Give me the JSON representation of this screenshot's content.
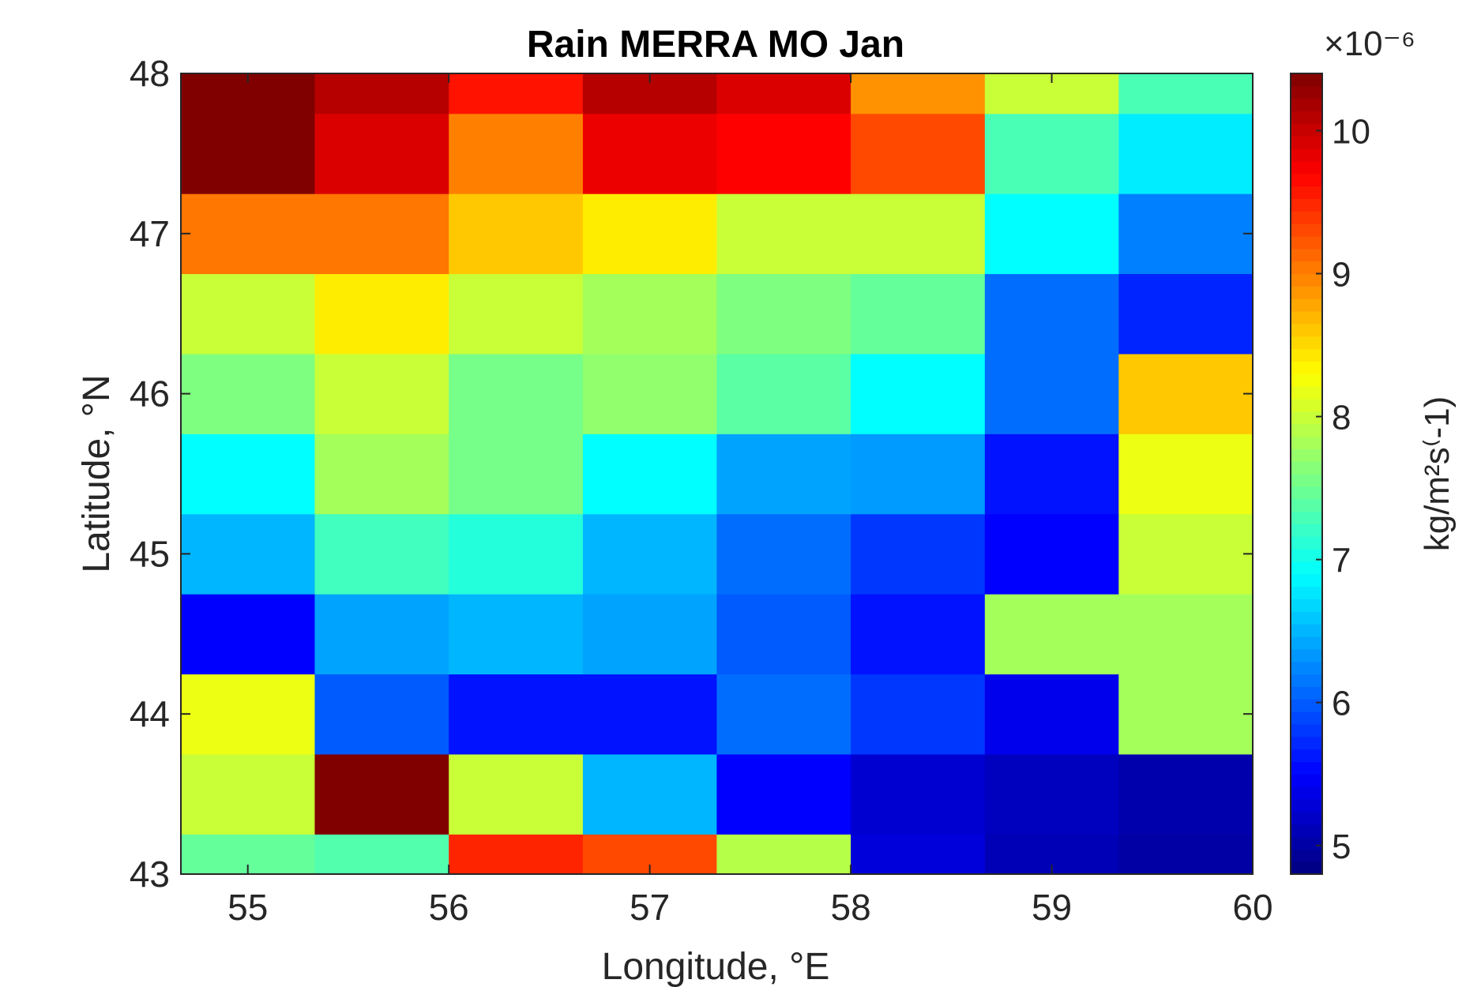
{
  "chart_data": {
    "type": "heatmap",
    "title": "Rain MERRA MO Jan",
    "xlabel": "Longitude, °E",
    "ylabel": "Latitude, °N",
    "colorbar_label": "kg/m²s⁽-1)",
    "colorbar_exponent": "×10⁻⁶",
    "colormap": "jet",
    "x_centers": [
      55.0,
      55.667,
      56.333,
      57.0,
      57.667,
      58.333,
      59.0,
      59.667
    ],
    "x_edges": [
      54.667,
      55.333,
      56.0,
      56.667,
      57.333,
      58.0,
      58.667,
      59.333,
      60.0
    ],
    "y_centers": [
      43.0,
      43.5,
      44.0,
      44.5,
      45.0,
      45.5,
      46.0,
      46.5,
      47.0,
      47.5,
      48.0
    ],
    "y_edges": [
      42.75,
      43.25,
      43.75,
      44.25,
      44.75,
      45.25,
      45.75,
      46.25,
      46.75,
      47.25,
      47.75,
      48.25
    ],
    "xlim": [
      54.667,
      60.0
    ],
    "ylim": [
      43.0,
      48.0
    ],
    "xticks": [
      55,
      56,
      57,
      58,
      59,
      60
    ],
    "yticks": [
      43,
      44,
      45,
      46,
      47,
      48
    ],
    "clim": [
      4.8,
      10.4
    ],
    "colorbar_ticks": [
      5,
      6,
      7,
      8,
      9,
      10
    ],
    "values": [
      [
        7.45,
        7.35,
        9.5,
        9.3,
        7.9,
        5.3,
        5.1,
        5.0
      ],
      [
        8.0,
        10.4,
        8.0,
        6.5,
        5.5,
        5.25,
        5.15,
        5.05
      ],
      [
        8.2,
        6.0,
        5.6,
        5.6,
        6.1,
        5.8,
        5.4,
        7.8
      ],
      [
        5.5,
        6.4,
        6.5,
        6.4,
        6.0,
        5.6,
        7.8,
        7.8
      ],
      [
        6.5,
        7.25,
        7.1,
        6.5,
        6.1,
        5.8,
        5.5,
        8.0
      ],
      [
        6.9,
        7.8,
        7.55,
        6.9,
        6.4,
        6.35,
        5.6,
        8.2
      ],
      [
        7.6,
        8.0,
        7.55,
        7.7,
        7.4,
        6.9,
        6.1,
        8.6
      ],
      [
        8.0,
        8.4,
        8.0,
        7.8,
        7.6,
        7.45,
        6.1,
        5.7
      ],
      [
        9.05,
        9.05,
        8.6,
        8.4,
        8.0,
        8.0,
        6.9,
        6.2
      ],
      [
        10.4,
        9.9,
        9.0,
        9.8,
        9.7,
        9.3,
        7.3,
        6.8
      ],
      [
        10.4,
        10.1,
        9.6,
        10.1,
        9.9,
        8.9,
        8.0,
        7.3
      ]
    ],
    "grid": false,
    "legend": "colorbar-right"
  }
}
